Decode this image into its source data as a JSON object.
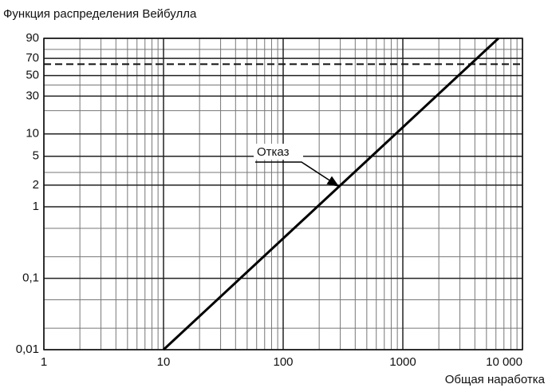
{
  "chart_data": {
    "type": "weibull_line",
    "title": "Функция распределения Вейбулла",
    "x_label": "Общая наработка",
    "x_scale": "log",
    "y_scale": "weibull",
    "xlim": [
      1,
      10000
    ],
    "ylim": [
      0.01,
      90
    ],
    "xticks": [
      1,
      10,
      100,
      1000,
      {
        "value": 10000,
        "label": "10 000"
      }
    ],
    "yticks": [
      {
        "value": 0.01,
        "label": "0,01"
      },
      {
        "value": 0.1,
        "label": "0,1"
      },
      1,
      2,
      5,
      10,
      30,
      50,
      70,
      90
    ],
    "x_minor_grid": [
      2,
      3,
      4,
      5,
      6,
      7,
      8,
      9,
      20,
      30,
      40,
      50,
      60,
      70,
      80,
      90,
      200,
      300,
      400,
      500,
      600,
      700,
      800,
      900,
      2000,
      3000,
      4000,
      5000,
      6000,
      7000,
      8000,
      9000
    ],
    "y_minor_grid": [
      0.02,
      0.05,
      0.2,
      0.5,
      3,
      20,
      40,
      80
    ],
    "reference_line": 63.2,
    "grid": true,
    "series": [
      {
        "name": "Отказ",
        "color": "#000000",
        "x": [
          10,
          6300
        ],
        "values": [
          0.01,
          90
        ]
      }
    ],
    "annotation": "Отказ"
  }
}
